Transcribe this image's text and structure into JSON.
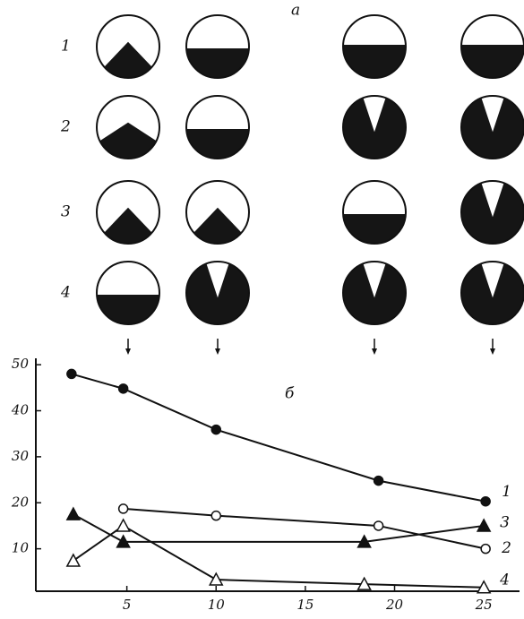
{
  "panel_a": {
    "label": "а",
    "row_labels": [
      "1",
      "2",
      "3",
      "4"
    ]
  },
  "chart_data": {
    "type": "line",
    "title": "б",
    "xlim": [
      0,
      27
    ],
    "ylim": [
      0,
      51
    ],
    "xticks": [
      5,
      10,
      15,
      20,
      25
    ],
    "yticks": [
      10,
      20,
      30,
      40,
      50
    ],
    "series": [
      {
        "name": "1",
        "color": "#111111",
        "marker": "circle",
        "filled": true,
        "x": [
          1.9,
          4.8,
          10,
          19.1,
          25.1
        ],
        "values": [
          48,
          44.8,
          35.9,
          24.8,
          20.3
        ]
      },
      {
        "name": "2",
        "color": "#111111",
        "marker": "circle",
        "filled": false,
        "x": [
          4.8,
          10,
          19.1,
          25.1
        ],
        "values": [
          18.7,
          17.2,
          15,
          10
        ]
      },
      {
        "name": "3",
        "color": "#111111",
        "marker": "triangle",
        "filled": true,
        "x": [
          2,
          4.8,
          18.3,
          25
        ],
        "values": [
          17.5,
          11.5,
          11.5,
          15
        ]
      },
      {
        "name": "4",
        "color": "#111111",
        "marker": "triangle",
        "filled": false,
        "x": [
          2,
          4.8,
          10,
          18.3,
          25
        ],
        "values": [
          7.4,
          15,
          3.3,
          2.3,
          1.6
        ]
      }
    ]
  }
}
